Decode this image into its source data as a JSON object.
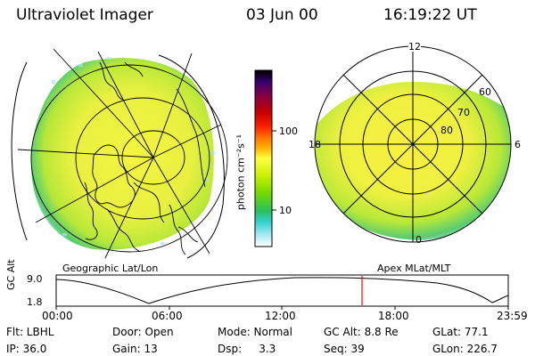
{
  "header": {
    "title": "Ultraviolet Imager",
    "date": "03 Jun 00",
    "time": "16:19:22 UT"
  },
  "left_panel": {
    "label": "Geographic Lat/Lon"
  },
  "right_panel": {
    "label": "Apex MLat/MLT",
    "mlt_labels": [
      "12",
      "18",
      "6",
      "0"
    ],
    "mlat_labels": [
      "60",
      "70",
      "80"
    ]
  },
  "colorbar": {
    "unit_label": "photon cm⁻²s⁻¹",
    "ticks": [
      "100",
      "10"
    ],
    "colors": [
      "#000000",
      "#3a0070",
      "#8a0040",
      "#c80000",
      "#ff2000",
      "#ff7000",
      "#ffb000",
      "#ffff40",
      "#c8f000",
      "#70d800",
      "#28c060",
      "#30d0d0",
      "#a0e8f0",
      "#ffffff"
    ]
  },
  "timeline": {
    "axis_label": "GC Alt",
    "y_ticks": [
      "9.0",
      "1.8"
    ],
    "x_ticks": [
      "00:00",
      "06:00",
      "12:00",
      "18:00",
      "23:59"
    ],
    "marker_color": "#ff0000",
    "marker_time": "16:19"
  },
  "status": {
    "row1": {
      "flt": "Flt: LBHL",
      "door": "Door: Open",
      "mode": "Mode: Normal",
      "gcalt": "GC Alt: 8.8 Re",
      "glat": "GLat:  77.1"
    },
    "row2": {
      "ip": "IP: 36.0",
      "gain": "Gain: 13",
      "dsp": "Dsp:     3.3",
      "seq": "Seq: 39",
      "glon": "GLon: 226.7"
    }
  }
}
